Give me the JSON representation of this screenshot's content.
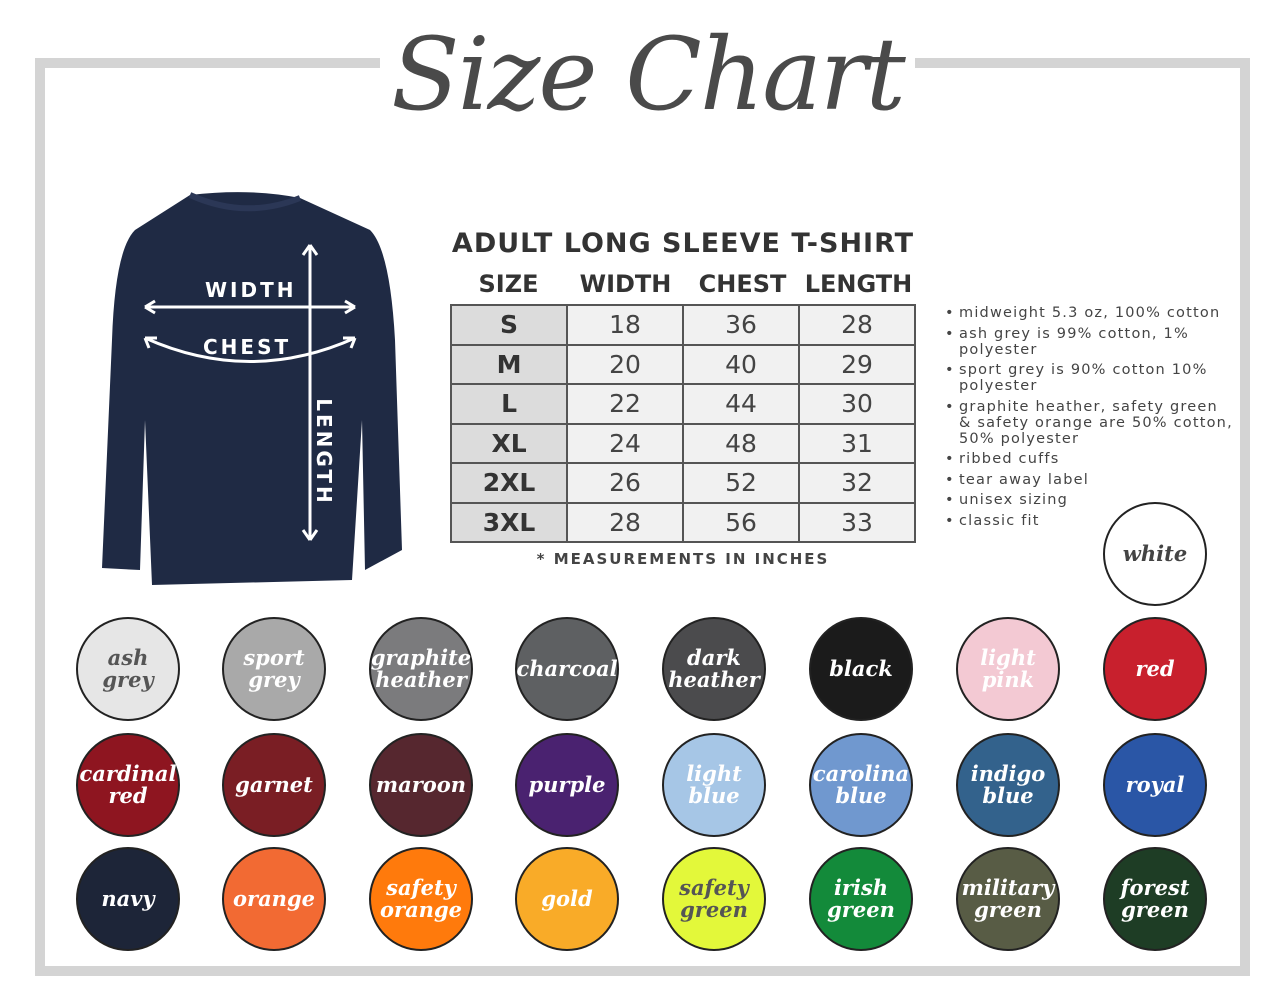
{
  "title": "Size Chart",
  "shirt": {
    "color": "#1f2a44",
    "labels": {
      "width": "WIDTH",
      "chest": "CHEST",
      "length": "LENGTH"
    }
  },
  "table": {
    "title": "ADULT LONG SLEEVE T-SHIRT",
    "headers": [
      "SIZE",
      "WIDTH",
      "CHEST",
      "LENGTH"
    ],
    "rows": [
      [
        "S",
        "18",
        "36",
        "28"
      ],
      [
        "M",
        "20",
        "40",
        "29"
      ],
      [
        "L",
        "22",
        "44",
        "30"
      ],
      [
        "XL",
        "24",
        "48",
        "31"
      ],
      [
        "2XL",
        "26",
        "52",
        "32"
      ],
      [
        "3XL",
        "28",
        "56",
        "33"
      ]
    ],
    "note": "* MEASUREMENTS IN INCHES"
  },
  "features": [
    "midweight 5.3 oz, 100% cotton",
    "ash grey is 99% cotton, 1% polyester",
    "sport grey is 90% cotton 10% polyester",
    "graphite heather, safety green & safety orange are 50% cotton, 50% polyester",
    "ribbed cuffs",
    "tear away label",
    "unisex sizing",
    "classic fit"
  ],
  "colors": [
    {
      "name": "white",
      "hex": "#ffffff",
      "text": "#444444"
    },
    {
      "name": "ash grey",
      "hex": "#e6e6e6",
      "text": "#555555"
    },
    {
      "name": "sport grey",
      "hex": "#a9a9a9",
      "text": "#ffffff"
    },
    {
      "name": "graphite heather",
      "hex": "#7b7b7d",
      "text": "#ffffff"
    },
    {
      "name": "charcoal",
      "hex": "#5e6062",
      "text": "#ffffff"
    },
    {
      "name": "dark heather",
      "hex": "#4b4b4d",
      "text": "#ffffff"
    },
    {
      "name": "black",
      "hex": "#1b1b1b",
      "text": "#ffffff"
    },
    {
      "name": "light pink",
      "hex": "#f3c9d3",
      "text": "#ffffff"
    },
    {
      "name": "red",
      "hex": "#c8202d",
      "text": "#ffffff"
    },
    {
      "name": "cardinal red",
      "hex": "#8e1520",
      "text": "#ffffff"
    },
    {
      "name": "garnet",
      "hex": "#7a1e24",
      "text": "#ffffff"
    },
    {
      "name": "maroon",
      "hex": "#56272f",
      "text": "#ffffff"
    },
    {
      "name": "purple",
      "hex": "#4a2270",
      "text": "#ffffff"
    },
    {
      "name": "light blue",
      "hex": "#a6c6e6",
      "text": "#ffffff"
    },
    {
      "name": "carolina blue",
      "hex": "#7098cf",
      "text": "#ffffff"
    },
    {
      "name": "indigo blue",
      "hex": "#33628c",
      "text": "#ffffff"
    },
    {
      "name": "royal",
      "hex": "#2a56a6",
      "text": "#ffffff"
    },
    {
      "name": "navy",
      "hex": "#1d2538",
      "text": "#ffffff"
    },
    {
      "name": "orange",
      "hex": "#f26a33",
      "text": "#ffffff"
    },
    {
      "name": "safety orange",
      "hex": "#ff7a0c",
      "text": "#ffffff"
    },
    {
      "name": "gold",
      "hex": "#f9ab28",
      "text": "#ffffff"
    },
    {
      "name": "safety green",
      "hex": "#e3f83a",
      "text": "#555555"
    },
    {
      "name": "irish green",
      "hex": "#138a3a",
      "text": "#ffffff"
    },
    {
      "name": "military green",
      "hex": "#585c45",
      "text": "#ffffff"
    },
    {
      "name": "forest green",
      "hex": "#1e3d25",
      "text": "#ffffff"
    }
  ]
}
